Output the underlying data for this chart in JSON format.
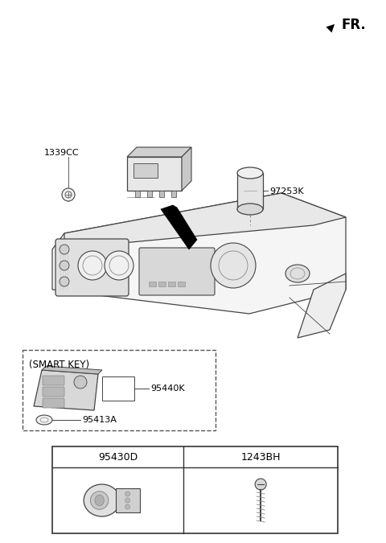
{
  "bg_color": "#ffffff",
  "fr_label": "FR.",
  "components": {
    "1339CC": "1339CC",
    "97253K": "97253K",
    "95440K": "95440K",
    "95413A": "95413A",
    "95430D": "95430D",
    "1243BH": "1243BH"
  },
  "smart_key_label": "(SMART KEY)"
}
